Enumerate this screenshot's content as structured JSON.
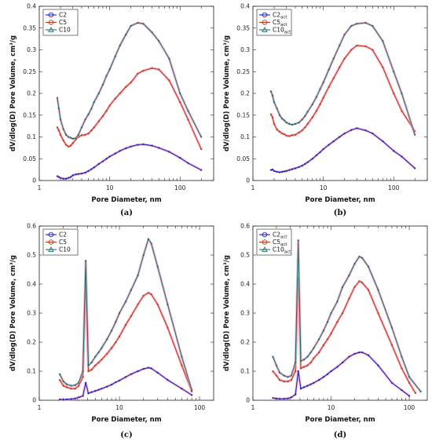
{
  "chart_data": [
    {
      "panel_label": "(a)",
      "type": "line",
      "xlabel": "Pore Diameter, nm",
      "ylabel": "dV/dlog(D) Pore Volume, cm³/g",
      "xscale": "log",
      "xlim": [
        1,
        300
      ],
      "ylim": [
        0,
        0.4
      ],
      "xticks": [
        1,
        10,
        100
      ],
      "yticks": [
        0,
        0.05,
        0.1,
        0.15,
        0.2,
        0.25,
        0.3,
        0.35,
        0.4
      ],
      "legend_position": "top-left",
      "series": [
        {
          "name": "C2",
          "sub": "",
          "color": "#1f1fbf",
          "marker": "circle",
          "x": [
            1.8,
            1.9,
            2.0,
            2.2,
            2.4,
            2.6,
            2.8,
            3.0,
            3.3,
            3.6,
            4.0,
            4.5,
            5.0,
            5.5,
            6,
            7,
            8,
            9,
            10,
            12,
            14,
            17,
            20,
            25,
            30,
            40,
            50,
            70,
            100,
            130,
            200
          ],
          "y": [
            0.01,
            0.008,
            0.006,
            0.004,
            0.004,
            0.006,
            0.008,
            0.012,
            0.014,
            0.015,
            0.016,
            0.018,
            0.022,
            0.026,
            0.03,
            0.038,
            0.044,
            0.05,
            0.055,
            0.062,
            0.068,
            0.074,
            0.078,
            0.082,
            0.083,
            0.08,
            0.075,
            0.066,
            0.052,
            0.04,
            0.024
          ]
        },
        {
          "name": "C5",
          "sub": "",
          "color": "#c0391b",
          "marker": "circle",
          "x": [
            1.8,
            1.9,
            2.0,
            2.2,
            2.4,
            2.6,
            2.8,
            3.0,
            3.3,
            3.6,
            4.0,
            4.5,
            5.0,
            5.5,
            6,
            7,
            8,
            9,
            10,
            12,
            14,
            17,
            20,
            25,
            30,
            40,
            50,
            70,
            100,
            130,
            200
          ],
          "y": [
            0.122,
            0.115,
            0.105,
            0.092,
            0.082,
            0.078,
            0.08,
            0.086,
            0.094,
            0.1,
            0.104,
            0.105,
            0.108,
            0.115,
            0.122,
            0.136,
            0.148,
            0.16,
            0.172,
            0.188,
            0.2,
            0.215,
            0.225,
            0.245,
            0.252,
            0.258,
            0.255,
            0.23,
            0.18,
            0.14,
            0.072
          ]
        },
        {
          "name": "C10",
          "sub": "",
          "color": "#1f6f6f",
          "marker": "triangle",
          "x": [
            1.8,
            1.9,
            2.0,
            2.2,
            2.4,
            2.6,
            2.8,
            3.0,
            3.3,
            3.6,
            4.0,
            4.5,
            5.0,
            5.5,
            6,
            7,
            8,
            9,
            10,
            12,
            14,
            17,
            20,
            25,
            30,
            40,
            50,
            70,
            100,
            130,
            200
          ],
          "y": [
            0.19,
            0.165,
            0.14,
            0.118,
            0.105,
            0.1,
            0.098,
            0.096,
            0.097,
            0.105,
            0.122,
            0.14,
            0.152,
            0.165,
            0.18,
            0.2,
            0.22,
            0.24,
            0.255,
            0.285,
            0.31,
            0.335,
            0.355,
            0.362,
            0.36,
            0.34,
            0.32,
            0.28,
            0.2,
            0.16,
            0.1
          ]
        }
      ]
    },
    {
      "panel_label": "(b)",
      "type": "line",
      "xlabel": "Pore Diameter, nm",
      "ylabel": "dV/dlog(D) Pore Volume, cm³/g",
      "xscale": "log",
      "xlim": [
        1,
        300
      ],
      "ylim": [
        0,
        0.4
      ],
      "xticks": [
        1,
        10,
        100
      ],
      "yticks": [
        0,
        0.05,
        0.1,
        0.15,
        0.2,
        0.25,
        0.3,
        0.35,
        0.4
      ],
      "legend_position": "top-left",
      "series": [
        {
          "name": "C2",
          "sub": "act",
          "color": "#1f1fbf",
          "marker": "circle",
          "x": [
            1.8,
            1.9,
            2.0,
            2.2,
            2.4,
            2.6,
            2.8,
            3.0,
            3.3,
            3.6,
            4.0,
            4.5,
            5.0,
            5.5,
            6,
            7,
            8,
            9,
            10,
            12,
            14,
            17,
            20,
            25,
            30,
            40,
            50,
            70,
            100,
            130,
            200
          ],
          "y": [
            0.024,
            0.025,
            0.022,
            0.02,
            0.019,
            0.02,
            0.021,
            0.022,
            0.024,
            0.026,
            0.028,
            0.031,
            0.034,
            0.038,
            0.042,
            0.05,
            0.058,
            0.065,
            0.072,
            0.082,
            0.09,
            0.1,
            0.108,
            0.116,
            0.12,
            0.115,
            0.108,
            0.09,
            0.068,
            0.055,
            0.028
          ]
        },
        {
          "name": "C5",
          "sub": "act",
          "color": "#c0391b",
          "marker": "circle",
          "x": [
            1.8,
            1.9,
            2.0,
            2.2,
            2.4,
            2.6,
            2.8,
            3.0,
            3.3,
            3.6,
            4.0,
            4.5,
            5.0,
            5.5,
            6,
            7,
            8,
            9,
            10,
            12,
            14,
            17,
            20,
            25,
            30,
            40,
            50,
            70,
            100,
            130,
            200
          ],
          "y": [
            0.152,
            0.145,
            0.13,
            0.117,
            0.112,
            0.108,
            0.106,
            0.103,
            0.102,
            0.104,
            0.105,
            0.11,
            0.115,
            0.122,
            0.13,
            0.145,
            0.16,
            0.175,
            0.19,
            0.215,
            0.235,
            0.26,
            0.28,
            0.3,
            0.31,
            0.308,
            0.3,
            0.26,
            0.2,
            0.16,
            0.113
          ]
        },
        {
          "name": "C10",
          "sub": "act",
          "color": "#1f6f6f",
          "marker": "triangle",
          "x": [
            1.8,
            1.9,
            2.0,
            2.2,
            2.4,
            2.6,
            2.8,
            3.0,
            3.3,
            3.6,
            4.0,
            4.5,
            5.0,
            5.5,
            6,
            7,
            8,
            9,
            10,
            12,
            14,
            17,
            20,
            25,
            30,
            40,
            50,
            70,
            100,
            130,
            200
          ],
          "y": [
            0.205,
            0.195,
            0.18,
            0.165,
            0.15,
            0.142,
            0.138,
            0.133,
            0.13,
            0.128,
            0.13,
            0.133,
            0.14,
            0.148,
            0.158,
            0.175,
            0.192,
            0.21,
            0.225,
            0.255,
            0.28,
            0.31,
            0.335,
            0.355,
            0.36,
            0.362,
            0.355,
            0.32,
            0.25,
            0.2,
            0.105
          ]
        }
      ]
    },
    {
      "panel_label": "(c)",
      "type": "line",
      "xlabel": "Pore Diameter, nm",
      "ylabel": "dV/dlog(D) Pore Volume, cm³/g",
      "xscale": "log",
      "xlim": [
        1,
        150
      ],
      "ylim": [
        0,
        0.6
      ],
      "xticks": [
        1,
        10,
        100
      ],
      "yticks": [
        0,
        0.1,
        0.2,
        0.3,
        0.4,
        0.5,
        0.6
      ],
      "legend_position": "top-left",
      "series": [
        {
          "name": "C2",
          "sub": "",
          "color": "#1f1fbf",
          "marker": "circle",
          "x": [
            1.8,
            2.0,
            2.2,
            2.5,
            2.8,
            3.1,
            3.5,
            3.8,
            4.1,
            4.5,
            5.0,
            5.5,
            6,
            7,
            8,
            9,
            10,
            12,
            14,
            17,
            20,
            23,
            25,
            30,
            40,
            60,
            80
          ],
          "y": [
            0.003,
            0.002,
            0.003,
            0.004,
            0.006,
            0.01,
            0.015,
            0.06,
            0.024,
            0.028,
            0.032,
            0.036,
            0.04,
            0.047,
            0.054,
            0.062,
            0.068,
            0.08,
            0.09,
            0.1,
            0.108,
            0.112,
            0.11,
            0.095,
            0.07,
            0.04,
            0.018
          ]
        },
        {
          "name": "C5",
          "sub": "",
          "color": "#c0391b",
          "marker": "circle",
          "x": [
            1.8,
            2.0,
            2.2,
            2.5,
            2.8,
            3.1,
            3.5,
            3.8,
            4.1,
            4.5,
            5.0,
            5.5,
            6,
            7,
            8,
            9,
            10,
            12,
            14,
            17,
            20,
            23,
            25,
            30,
            40,
            60,
            80
          ],
          "y": [
            0.07,
            0.05,
            0.045,
            0.04,
            0.04,
            0.05,
            0.08,
            0.41,
            0.1,
            0.105,
            0.12,
            0.13,
            0.14,
            0.16,
            0.18,
            0.2,
            0.22,
            0.26,
            0.29,
            0.33,
            0.36,
            0.37,
            0.365,
            0.33,
            0.25,
            0.12,
            0.03
          ]
        },
        {
          "name": "C10",
          "sub": "",
          "color": "#1f6f6f",
          "marker": "triangle",
          "x": [
            1.8,
            2.0,
            2.2,
            2.5,
            2.8,
            3.1,
            3.5,
            3.8,
            4.1,
            4.5,
            5.0,
            5.5,
            6,
            7,
            8,
            9,
            10,
            12,
            14,
            17,
            20,
            23,
            25,
            30,
            40,
            60,
            80
          ],
          "y": [
            0.09,
            0.065,
            0.055,
            0.05,
            0.052,
            0.06,
            0.1,
            0.48,
            0.12,
            0.13,
            0.15,
            0.165,
            0.18,
            0.21,
            0.24,
            0.27,
            0.3,
            0.34,
            0.38,
            0.43,
            0.5,
            0.555,
            0.54,
            0.46,
            0.33,
            0.15,
            0.035
          ]
        }
      ]
    },
    {
      "panel_label": "(d)",
      "type": "line",
      "xlabel": "Pore Diameter, nm",
      "ylabel": "dV/dlog(D) Pore Volume, cm³/g",
      "xscale": "log",
      "xlim": [
        1,
        170
      ],
      "ylim": [
        0,
        0.6
      ],
      "xticks": [
        1,
        10,
        100
      ],
      "yticks": [
        0,
        0.1,
        0.2,
        0.3,
        0.4,
        0.5,
        0.6
      ],
      "legend_position": "top-left",
      "series": [
        {
          "name": "C2",
          "sub": "act",
          "color": "#1f1fbf",
          "marker": "circle",
          "x": [
            1.8,
            2.0,
            2.2,
            2.5,
            2.8,
            3.1,
            3.5,
            3.8,
            4.1,
            4.5,
            5.0,
            5.5,
            6,
            7,
            8,
            9,
            10,
            12,
            14,
            17,
            20,
            23,
            25,
            30,
            40,
            60,
            80,
            100
          ],
          "y": [
            0.008,
            0.006,
            0.005,
            0.005,
            0.006,
            0.01,
            0.02,
            0.1,
            0.04,
            0.045,
            0.05,
            0.055,
            0.06,
            0.07,
            0.08,
            0.09,
            0.1,
            0.115,
            0.13,
            0.15,
            0.16,
            0.165,
            0.165,
            0.155,
            0.12,
            0.06,
            0.035,
            0.015
          ]
        },
        {
          "name": "C5",
          "sub": "act",
          "color": "#c0391b",
          "marker": "circle",
          "x": [
            1.8,
            2.0,
            2.2,
            2.5,
            2.8,
            3.1,
            3.5,
            3.8,
            4.1,
            4.5,
            5.0,
            5.5,
            6,
            7,
            8,
            9,
            10,
            12,
            14,
            17,
            20,
            23,
            25,
            30,
            40,
            60,
            80,
            100,
            120
          ],
          "y": [
            0.1,
            0.085,
            0.07,
            0.065,
            0.065,
            0.07,
            0.1,
            0.42,
            0.11,
            0.115,
            0.12,
            0.13,
            0.145,
            0.165,
            0.19,
            0.21,
            0.23,
            0.27,
            0.3,
            0.35,
            0.39,
            0.41,
            0.405,
            0.38,
            0.3,
            0.19,
            0.11,
            0.06,
            0.025
          ]
        },
        {
          "name": "C10",
          "sub": "act",
          "color": "#1f6f6f",
          "marker": "triangle",
          "x": [
            1.8,
            2.0,
            2.2,
            2.5,
            2.8,
            3.1,
            3.5,
            3.8,
            4.1,
            4.5,
            5.0,
            5.5,
            6,
            7,
            8,
            9,
            10,
            12,
            14,
            17,
            20,
            23,
            25,
            30,
            40,
            60,
            80,
            100,
            140
          ],
          "y": [
            0.15,
            0.12,
            0.095,
            0.085,
            0.08,
            0.085,
            0.13,
            0.55,
            0.135,
            0.14,
            0.15,
            0.165,
            0.18,
            0.21,
            0.24,
            0.27,
            0.3,
            0.34,
            0.39,
            0.43,
            0.47,
            0.495,
            0.49,
            0.46,
            0.38,
            0.25,
            0.15,
            0.08,
            0.03
          ]
        }
      ]
    }
  ]
}
